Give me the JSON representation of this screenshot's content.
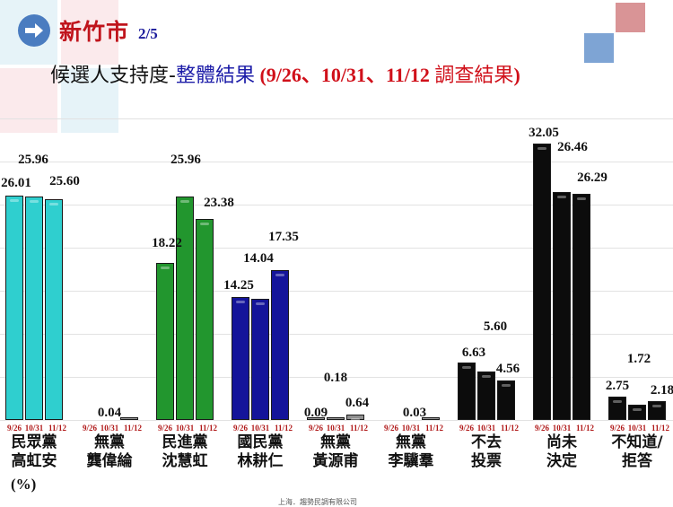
{
  "header": {
    "city": "新竹市",
    "page": "2/5",
    "subtitle_part1": "候選人支持度-",
    "subtitle_part2": "整體結果",
    "subtitle_part3": " (9/26、10/31、11/12 ",
    "subtitle_part4": "調查結果",
    "subtitle_part5": ")",
    "icon": "arrow-right-circle-icon"
  },
  "colors": {
    "tpp": "#2fcfcf",
    "dpp": "#22962e",
    "kmt": "#14149a",
    "independent": "#909090",
    "other": "#0c0c0c",
    "date_label": "#b01818",
    "title_red": "#c0141c",
    "title_blue": "#1c1ca8"
  },
  "unit_label": "(%)",
  "source_note": "上海．趨勢民調有限公司",
  "chart_data": {
    "type": "bar",
    "title": "候選人支持度-整體結果 (9/26、10/31、11/12 調查結果)",
    "xlabel": "",
    "ylabel": "(%)",
    "ylim": [
      0,
      35
    ],
    "grid": true,
    "legend": "none (survey dates labeled under each bar)",
    "series_names": [
      "9/26",
      "10/31",
      "11/12"
    ],
    "categories": [
      {
        "line1": "民眾黨",
        "line2": "高虹安",
        "values": [
          26.01,
          25.96,
          25.6
        ],
        "labels": [
          "26.01",
          "25.96",
          "25.60"
        ],
        "color": "#2fcfcf"
      },
      {
        "line1": "無黨",
        "line2": "龔偉綸",
        "values": [
          null,
          null,
          0.04
        ],
        "labels": [
          "",
          "",
          "0.04"
        ],
        "color": "#909090"
      },
      {
        "line1": "民進黨",
        "line2": "沈慧虹",
        "values": [
          18.22,
          25.96,
          23.38
        ],
        "labels": [
          "18.22",
          "25.96",
          "23.38"
        ],
        "color": "#22962e"
      },
      {
        "line1": "國民黨",
        "line2": "林耕仁",
        "values": [
          14.25,
          14.04,
          17.35
        ],
        "labels": [
          "14.25",
          "14.04",
          "17.35"
        ],
        "color": "#14149a"
      },
      {
        "line1": "無黨",
        "line2": "黃源甫",
        "values": [
          0.09,
          0.18,
          0.64
        ],
        "labels": [
          "0.09",
          "0.18",
          "0.64"
        ],
        "color": "#909090"
      },
      {
        "line1": "無黨",
        "line2": "李驥羣",
        "values": [
          null,
          null,
          0.03
        ],
        "labels": [
          "",
          "",
          "0.03"
        ],
        "color": "#909090"
      },
      {
        "line1": "不去",
        "line2": "投票",
        "values": [
          6.63,
          5.6,
          4.56
        ],
        "labels": [
          "6.63",
          "5.60",
          "4.56"
        ],
        "color": "#0c0c0c"
      },
      {
        "line1": "尚未",
        "line2": "決定",
        "values": [
          32.05,
          26.46,
          26.29
        ],
        "labels": [
          "32.05",
          "26.46",
          "26.29"
        ],
        "color": "#0c0c0c"
      },
      {
        "line1": "不知道/",
        "line2": "拒答",
        "values": [
          2.75,
          1.72,
          2.18
        ],
        "labels": [
          "2.75",
          "1.72",
          "2.18"
        ],
        "color": "#0c0c0c"
      }
    ],
    "series": [
      {
        "name": "9/26",
        "values": [
          26.01,
          null,
          18.22,
          14.25,
          0.09,
          null,
          6.63,
          32.05,
          2.75
        ]
      },
      {
        "name": "10/31",
        "values": [
          25.96,
          null,
          25.96,
          14.04,
          0.18,
          null,
          5.6,
          26.46,
          1.72
        ]
      },
      {
        "name": "11/12",
        "values": [
          25.6,
          0.04,
          23.38,
          17.35,
          0.64,
          0.03,
          4.56,
          26.29,
          2.18
        ]
      }
    ]
  }
}
